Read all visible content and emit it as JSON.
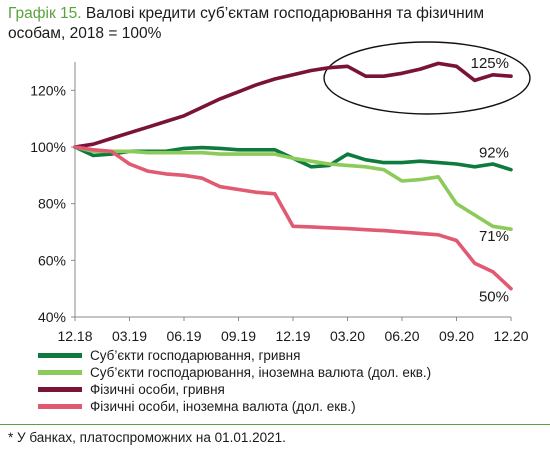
{
  "title": {
    "prefix": "Графік 15.",
    "text": "Валові кредити суб’єктам господарювання та фізичним особам, 2018 = 100%"
  },
  "footnote": "* У банках, платоспроможних на 01.01.2021.",
  "chart_data": {
    "type": "line",
    "title": "Валові кредити суб’єктам господарювання та фізичним особам, 2018 = 100%",
    "ylim": [
      40,
      130
    ],
    "yticks": [
      40,
      60,
      80,
      100,
      120
    ],
    "ytick_labels": [
      "40%",
      "60%",
      "80%",
      "100%",
      "120%"
    ],
    "xticks": [
      "12.18",
      "03.19",
      "06.19",
      "09.19",
      "12.19",
      "03.20",
      "06.20",
      "09.20",
      "12.20"
    ],
    "grid": false,
    "legend_position": "bottom",
    "series": [
      {
        "name": "Суб’єкти господарювання, гривня",
        "color": "#0f7a3e",
        "values": [
          100,
          97,
          97.5,
          98.5,
          98.5,
          98.5,
          99.5,
          99.8,
          99.5,
          99,
          99,
          99,
          96,
          93,
          93.5,
          97.5,
          95.5,
          94.5,
          94.5,
          95,
          94.5,
          94,
          93,
          94,
          92
        ]
      },
      {
        "name": "Суб’єкти господарювання, іноземна валюта (дол. екв.)",
        "color": "#8cca5a",
        "values": [
          100,
          98.5,
          98.5,
          98.5,
          98,
          98,
          98,
          98,
          97.5,
          97.5,
          97.5,
          97.5,
          96,
          95,
          94,
          93.5,
          93,
          92,
          88,
          88.5,
          89.5,
          80,
          76,
          72,
          71
        ]
      },
      {
        "name": "Фізичні особи, гривня",
        "color": "#7a1338",
        "values": [
          100,
          101,
          103,
          105,
          107,
          109,
          111,
          114,
          117,
          119.5,
          122,
          124,
          125.5,
          127,
          128,
          128.5,
          125,
          125,
          126,
          127.5,
          129.5,
          128.5,
          123.5,
          125.5,
          125
        ]
      },
      {
        "name": "Фізичні особи, іноземна валюта (дол. екв.)",
        "color": "#e05a72",
        "values": [
          100,
          99,
          98.5,
          94,
          91.5,
          90.5,
          90,
          89,
          86,
          85,
          84,
          83.5,
          72,
          71.8,
          71.5,
          71.2,
          70.8,
          70.5,
          70,
          69.5,
          69,
          67,
          59,
          56,
          50
        ]
      }
    ],
    "annotations": [
      {
        "text": "125%",
        "series": 2,
        "value": 125
      },
      {
        "text": "92%",
        "series": 0,
        "value": 92
      },
      {
        "text": "71%",
        "series": 1,
        "value": 71
      },
      {
        "text": "50%",
        "series": 3,
        "value": 50
      }
    ]
  }
}
